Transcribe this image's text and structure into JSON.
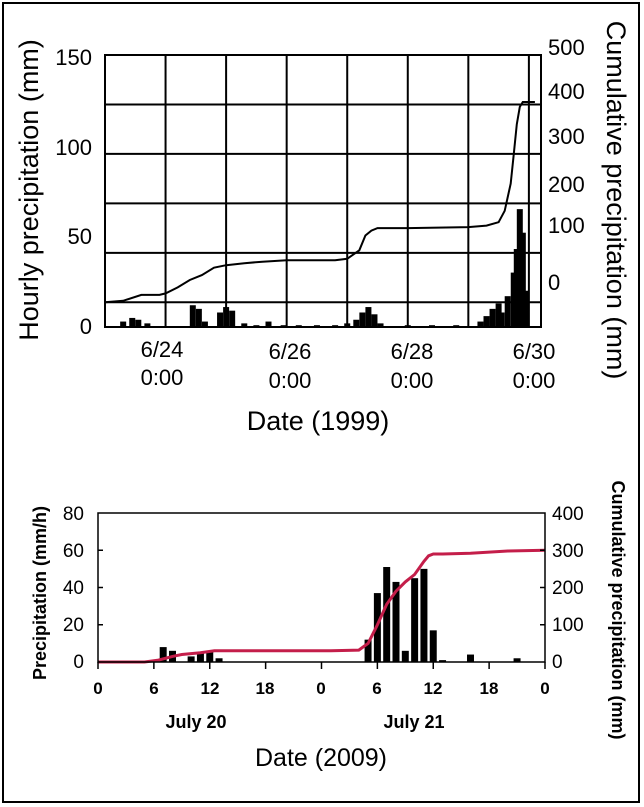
{
  "chart_data": [
    {
      "type": "bar",
      "xlabel": "Date (1999)",
      "ylabel": "Hourly precipitation (mm)",
      "y2label": "Cumulative precipitation (mm)",
      "ylim": [
        0,
        150
      ],
      "y2lim": [
        -50,
        500
      ],
      "yticks": [
        "0",
        "50",
        "100",
        "150"
      ],
      "y2ticks": [
        "0",
        "100",
        "200",
        "300",
        "400",
        "500"
      ],
      "xticks": [
        {
          "x": 24,
          "line1": "6/24",
          "line2": "0:00"
        },
        {
          "x": 26,
          "line1": "6/26",
          "line2": "0:00"
        },
        {
          "x": 28,
          "line1": "6/28",
          "line2": "0:00"
        },
        {
          "x": 30,
          "line1": "6/30",
          "line2": "0:00"
        }
      ],
      "xlim": [
        23,
        30.2
      ],
      "grid": true,
      "series": [
        {
          "kind": "bar",
          "axis": "left",
          "x": [
            23.3,
            23.45,
            23.55,
            23.7,
            24.45,
            24.55,
            24.65,
            24.9,
            25.0,
            25.1,
            25.3,
            25.5,
            25.7,
            25.95,
            26.2,
            26.5,
            26.8,
            27.0,
            27.15,
            27.25,
            27.35,
            27.45,
            27.55,
            28.0,
            28.4,
            28.8,
            29.2,
            29.3,
            29.4,
            29.5,
            29.55,
            29.65,
            29.75,
            29.8,
            29.85,
            29.9,
            29.95
          ],
          "values": [
            3,
            5,
            4,
            2,
            12,
            10,
            3,
            8,
            11,
            9,
            2,
            1,
            3,
            1,
            1,
            1,
            1,
            2,
            4,
            8,
            11,
            7,
            2,
            1,
            1,
            1,
            3,
            6,
            10,
            13,
            8,
            17,
            30,
            43,
            65,
            52,
            20
          ]
        },
        {
          "kind": "line",
          "axis": "right",
          "x": [
            23.0,
            23.3,
            23.6,
            23.9,
            24.0,
            24.2,
            24.4,
            24.6,
            24.8,
            25.0,
            25.3,
            25.6,
            26.0,
            26.4,
            26.8,
            27.0,
            27.2,
            27.3,
            27.4,
            27.5,
            27.7,
            28.0,
            28.5,
            29.0,
            29.3,
            29.5,
            29.6,
            29.7,
            29.75,
            29.8,
            29.85,
            29.9,
            30.0,
            30.1
          ],
          "values": [
            0,
            3,
            15,
            15,
            18,
            30,
            45,
            55,
            70,
            75,
            79,
            82,
            85,
            85,
            85,
            88,
            105,
            135,
            145,
            150,
            150,
            150,
            151,
            152,
            155,
            162,
            185,
            240,
            300,
            360,
            395,
            405,
            405,
            405
          ]
        }
      ]
    },
    {
      "type": "bar",
      "xlabel": "Date (2009)",
      "ylabel": "Precipitation (mm/h)",
      "y2label": "Cumulative precipitation (mm)",
      "ylim": [
        0,
        80
      ],
      "y2lim": [
        0,
        400
      ],
      "yticks": [
        "0",
        "20",
        "40",
        "60",
        "80"
      ],
      "y2ticks": [
        "0",
        "100",
        "200",
        "300",
        "400"
      ],
      "xlim": [
        0,
        48
      ],
      "xticks": [
        "0",
        "6",
        "12",
        "18",
        "0",
        "6",
        "12",
        "18",
        "0"
      ],
      "date_labels": [
        {
          "x": 10,
          "text": "July 20"
        },
        {
          "x": 34,
          "text": "July 21"
        }
      ],
      "series": [
        {
          "kind": "bar",
          "axis": "left",
          "x": [
            7,
            8,
            10,
            11,
            12,
            13,
            29,
            30,
            31,
            32,
            33,
            34,
            35,
            36,
            37,
            40,
            45
          ],
          "values": [
            8,
            6,
            3,
            5,
            6,
            2,
            12,
            37,
            51,
            43,
            6,
            45,
            50,
            17,
            1,
            4,
            2
          ]
        },
        {
          "kind": "line",
          "axis": "right",
          "color": "#c41e4a",
          "x": [
            0,
            5,
            6.5,
            8,
            9,
            11,
            12.5,
            15,
            20,
            25,
            28,
            29,
            30,
            31,
            32,
            33,
            34,
            35,
            35.5,
            36,
            37,
            40,
            44,
            48
          ],
          "values": [
            0,
            0,
            5,
            15,
            20,
            25,
            30,
            30,
            30,
            30,
            32,
            50,
            100,
            155,
            190,
            215,
            235,
            270,
            285,
            290,
            290,
            292,
            298,
            300
          ]
        }
      ]
    }
  ]
}
